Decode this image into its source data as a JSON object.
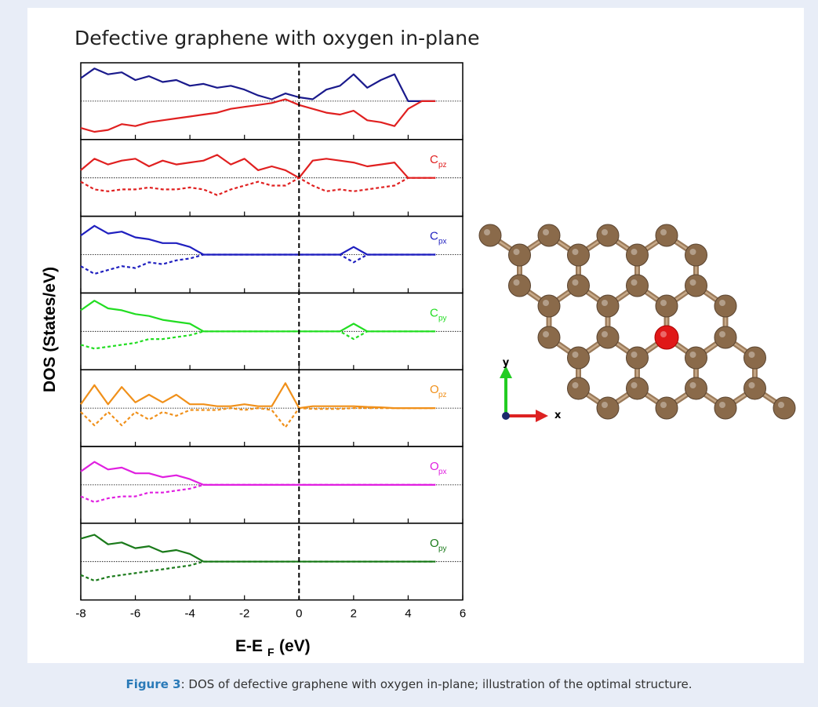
{
  "figure": {
    "title": "Defective graphene with oxygen in-plane",
    "y_label": "DOS (States/eV)",
    "x_label": "E-E",
    "x_label_sub": "F",
    "x_label_unit": "(eV)",
    "fermi_line": 0
  },
  "structure": {
    "axis_x": "x",
    "axis_y": "y"
  },
  "caption": {
    "label": "Figure 3",
    "text": ": DOS of defective graphene with oxygen in-plane; illustration of the optimal structure."
  },
  "chart_data": [
    {
      "type": "line",
      "x": [
        -8,
        -7.5,
        -7,
        -6.5,
        -6,
        -5.5,
        -5,
        -4.5,
        -4,
        -3.5,
        -3,
        -2.5,
        -2,
        -1.5,
        -1,
        -0.5,
        0,
        0.5,
        1,
        1.5,
        2,
        2.5,
        3,
        3.5,
        4,
        4.5,
        5
      ],
      "xlim": [
        -8,
        6
      ],
      "xticks": [
        -8,
        -6,
        -4,
        -2,
        0,
        2,
        4,
        6
      ],
      "ylim": [
        -1,
        1
      ],
      "hline": 0,
      "series": [
        {
          "color": "#1a1a8c",
          "style": "solid",
          "values": [
            0.6,
            0.85,
            0.7,
            0.75,
            0.55,
            0.65,
            0.5,
            0.55,
            0.4,
            0.45,
            0.35,
            0.4,
            0.3,
            0.15,
            0.05,
            0.2,
            0.1,
            0.05,
            0.3,
            0.4,
            0.7,
            0.35,
            0.55,
            0.7,
            0,
            0,
            0
          ]
        },
        {
          "color": "#e02020",
          "style": "solid",
          "values": [
            -0.7,
            -0.8,
            -0.75,
            -0.6,
            -0.65,
            -0.55,
            -0.5,
            -0.45,
            -0.4,
            -0.35,
            -0.3,
            -0.2,
            -0.15,
            -0.1,
            -0.05,
            0.05,
            -0.1,
            -0.2,
            -0.3,
            -0.35,
            -0.25,
            -0.5,
            -0.55,
            -0.65,
            -0.2,
            0,
            0
          ]
        }
      ]
    },
    {
      "type": "line",
      "label": "C",
      "label_sub": "pz",
      "x": [
        -8,
        -7.5,
        -7,
        -6.5,
        -6,
        -5.5,
        -5,
        -4.5,
        -4,
        -3.5,
        -3,
        -2.5,
        -2,
        -1.5,
        -1,
        -0.5,
        0,
        0.5,
        1,
        1.5,
        2,
        2.5,
        3,
        3.5,
        4,
        4.5,
        5
      ],
      "xlim": [
        -8,
        6
      ],
      "xticks": [
        -8,
        -6,
        -4,
        -2,
        0,
        2,
        4,
        6
      ],
      "ylim": [
        -1,
        1
      ],
      "hline": 0,
      "series": [
        {
          "color": "#e02020",
          "style": "solid",
          "values": [
            0.2,
            0.5,
            0.35,
            0.45,
            0.5,
            0.3,
            0.45,
            0.35,
            0.4,
            0.45,
            0.6,
            0.35,
            0.5,
            0.2,
            0.3,
            0.2,
            0,
            0.45,
            0.5,
            0.45,
            0.4,
            0.3,
            0.35,
            0.4,
            0,
            0,
            0
          ]
        },
        {
          "color": "#e02020",
          "style": "dashed",
          "values": [
            -0.1,
            -0.3,
            -0.35,
            -0.3,
            -0.3,
            -0.25,
            -0.3,
            -0.3,
            -0.25,
            -0.3,
            -0.45,
            -0.3,
            -0.2,
            -0.1,
            -0.2,
            -0.2,
            0,
            -0.2,
            -0.35,
            -0.3,
            -0.35,
            -0.3,
            -0.25,
            -0.2,
            0,
            0,
            0
          ]
        }
      ]
    },
    {
      "type": "line",
      "label": "C",
      "label_sub": "px",
      "x": [
        -8,
        -7.5,
        -7,
        -6.5,
        -6,
        -5.5,
        -5,
        -4.5,
        -4,
        -3.5,
        -3,
        -2.5,
        -2,
        -1.5,
        -1,
        -0.5,
        0,
        0.5,
        1,
        1.5,
        2,
        2.5,
        3,
        3.5,
        4,
        4.5,
        5
      ],
      "xlim": [
        -8,
        6
      ],
      "xticks": [
        -8,
        -6,
        -4,
        -2,
        0,
        2,
        4,
        6
      ],
      "ylim": [
        -1,
        1
      ],
      "hline": 0,
      "series": [
        {
          "color": "#1f1fbf",
          "style": "solid",
          "values": [
            0.5,
            0.75,
            0.55,
            0.6,
            0.45,
            0.4,
            0.3,
            0.3,
            0.2,
            0,
            0,
            0,
            0,
            0,
            0,
            0,
            0,
            0,
            0,
            0,
            0.2,
            0,
            0,
            0,
            0,
            0,
            0
          ]
        },
        {
          "color": "#1f1fbf",
          "style": "dashed",
          "values": [
            -0.3,
            -0.5,
            -0.4,
            -0.3,
            -0.35,
            -0.2,
            -0.25,
            -0.15,
            -0.1,
            0,
            0,
            0,
            0,
            0,
            0,
            0,
            0,
            0,
            0,
            0,
            -0.2,
            0,
            0,
            0,
            0,
            0,
            0
          ]
        }
      ]
    },
    {
      "type": "line",
      "label": "C",
      "label_sub": "py",
      "x": [
        -8,
        -7.5,
        -7,
        -6.5,
        -6,
        -5.5,
        -5,
        -4.5,
        -4,
        -3.5,
        -3,
        -2.5,
        -2,
        -1.5,
        -1,
        -0.5,
        0,
        0.5,
        1,
        1.5,
        2,
        2.5,
        3,
        3.5,
        4,
        4.5,
        5
      ],
      "xlim": [
        -8,
        6
      ],
      "xticks": [
        -8,
        -6,
        -4,
        -2,
        0,
        2,
        4,
        6
      ],
      "ylim": [
        -1,
        1
      ],
      "hline": 0,
      "series": [
        {
          "color": "#22dd22",
          "style": "solid",
          "values": [
            0.55,
            0.8,
            0.6,
            0.55,
            0.45,
            0.4,
            0.3,
            0.25,
            0.2,
            0,
            0,
            0,
            0,
            0,
            0,
            0,
            0,
            0,
            0,
            0,
            0.2,
            0,
            0,
            0,
            0,
            0,
            0
          ]
        },
        {
          "color": "#22dd22",
          "style": "dashed",
          "values": [
            -0.35,
            -0.45,
            -0.4,
            -0.35,
            -0.3,
            -0.2,
            -0.2,
            -0.15,
            -0.1,
            0,
            0,
            0,
            0,
            0,
            0,
            0,
            0,
            0,
            0,
            0,
            -0.2,
            0,
            0,
            0,
            0,
            0,
            0
          ]
        }
      ]
    },
    {
      "type": "line",
      "label": "O",
      "label_sub": "pz",
      "x": [
        -8,
        -7.5,
        -7,
        -6.5,
        -6,
        -5.5,
        -5,
        -4.5,
        -4,
        -3.5,
        -3,
        -2.5,
        -2,
        -1.5,
        -1,
        -0.5,
        0,
        0.5,
        1,
        1.5,
        2,
        2.5,
        3,
        3.5,
        4,
        4.5,
        5
      ],
      "xlim": [
        -8,
        6
      ],
      "xticks": [
        -8,
        -6,
        -4,
        -2,
        0,
        2,
        4,
        6
      ],
      "ylim": [
        -1,
        1
      ],
      "hline": 0,
      "series": [
        {
          "color": "#f0901a",
          "style": "solid",
          "values": [
            0.1,
            0.6,
            0.1,
            0.55,
            0.15,
            0.35,
            0.15,
            0.35,
            0.1,
            0.1,
            0.05,
            0.05,
            0.1,
            0.05,
            0.05,
            0.65,
            0,
            0.05,
            0.05,
            0.05,
            0.05,
            0.03,
            0.02,
            0,
            0,
            0,
            0
          ]
        },
        {
          "color": "#f0901a",
          "style": "dashed",
          "values": [
            -0.1,
            -0.45,
            -0.1,
            -0.45,
            -0.1,
            -0.3,
            -0.1,
            -0.2,
            -0.05,
            -0.05,
            -0.05,
            0,
            -0.05,
            0,
            -0.05,
            -0.5,
            0,
            -0.02,
            -0.02,
            -0.02,
            0,
            0,
            0,
            0,
            0,
            0,
            0
          ]
        }
      ]
    },
    {
      "type": "line",
      "label": "O",
      "label_sub": "px",
      "x": [
        -8,
        -7.5,
        -7,
        -6.5,
        -6,
        -5.5,
        -5,
        -4.5,
        -4,
        -3.5,
        -3,
        -2.5,
        -2,
        -1.5,
        -1,
        -0.5,
        0,
        0.5,
        1,
        1.5,
        2,
        2.5,
        3,
        3.5,
        4,
        4.5,
        5
      ],
      "xlim": [
        -8,
        6
      ],
      "xticks": [
        -8,
        -6,
        -4,
        -2,
        0,
        2,
        4,
        6
      ],
      "ylim": [
        -1,
        1
      ],
      "hline": 0,
      "series": [
        {
          "color": "#e020e0",
          "style": "solid",
          "values": [
            0.35,
            0.6,
            0.4,
            0.45,
            0.3,
            0.3,
            0.2,
            0.25,
            0.15,
            0,
            0,
            0,
            0,
            0,
            0,
            0,
            0,
            0,
            0,
            0,
            0,
            0,
            0,
            0,
            0,
            0,
            0
          ]
        },
        {
          "color": "#e020e0",
          "style": "dashed",
          "values": [
            -0.3,
            -0.45,
            -0.35,
            -0.3,
            -0.3,
            -0.2,
            -0.2,
            -0.15,
            -0.1,
            0,
            0,
            0,
            0,
            0,
            0,
            0,
            0,
            0,
            0,
            0,
            0,
            0,
            0,
            0,
            0,
            0,
            0
          ]
        }
      ]
    },
    {
      "type": "line",
      "label": "O",
      "label_sub": "py",
      "x": [
        -8,
        -7.5,
        -7,
        -6.5,
        -6,
        -5.5,
        -5,
        -4.5,
        -4,
        -3.5,
        -3,
        -2.5,
        -2,
        -1.5,
        -1,
        -0.5,
        0,
        0.5,
        1,
        1.5,
        2,
        2.5,
        3,
        3.5,
        4,
        4.5,
        5
      ],
      "xlim": [
        -8,
        6
      ],
      "xticks": [
        -8,
        -6,
        -4,
        -2,
        0,
        2,
        4,
        6
      ],
      "ylim": [
        -1,
        1
      ],
      "hline": 0,
      "series": [
        {
          "color": "#1a7a1a",
          "style": "solid",
          "values": [
            0.6,
            0.7,
            0.45,
            0.5,
            0.35,
            0.4,
            0.25,
            0.3,
            0.2,
            0,
            0,
            0,
            0,
            0,
            0,
            0,
            0,
            0,
            0,
            0,
            0,
            0,
            0,
            0,
            0,
            0,
            0
          ]
        },
        {
          "color": "#1a7a1a",
          "style": "dashed",
          "values": [
            -0.35,
            -0.5,
            -0.4,
            -0.35,
            -0.3,
            -0.25,
            -0.2,
            -0.15,
            -0.1,
            0,
            0,
            0,
            0,
            0,
            0,
            0,
            0,
            0,
            0,
            0,
            0,
            0,
            0,
            0,
            0,
            0,
            0
          ]
        }
      ]
    }
  ]
}
